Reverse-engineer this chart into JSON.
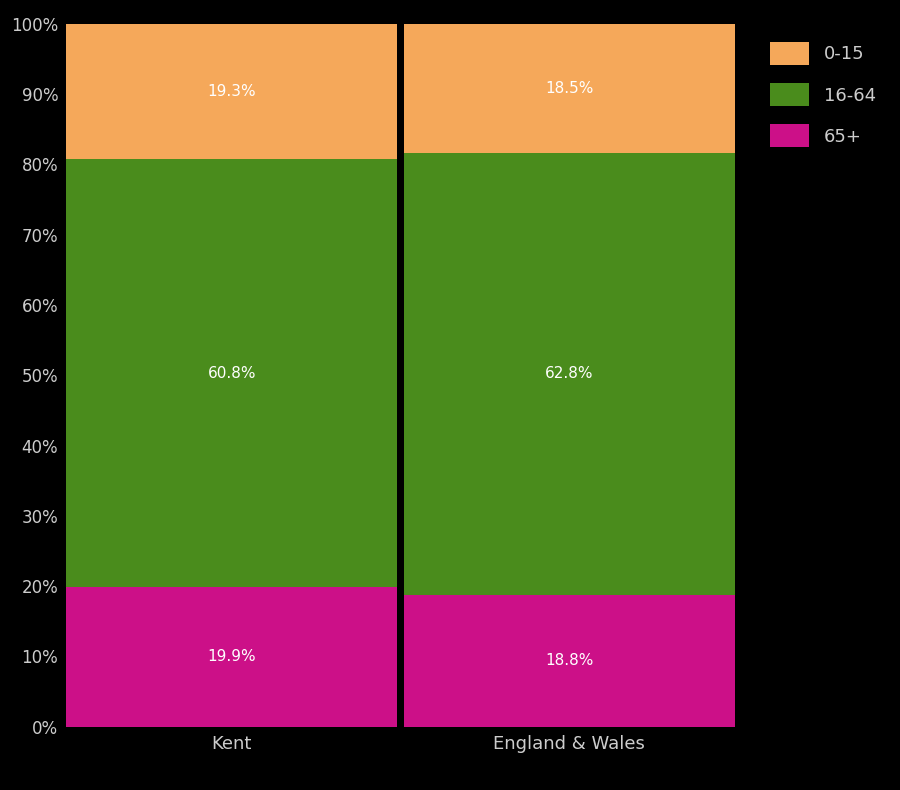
{
  "categories": [
    "Kent",
    "England & Wales"
  ],
  "segments": [
    {
      "label": "65+",
      "values": [
        19.9,
        18.8
      ],
      "color": "#CC1088"
    },
    {
      "label": "16-64",
      "values": [
        60.8,
        62.8
      ],
      "color": "#4A8C1C"
    },
    {
      "label": "0-15",
      "values": [
        19.3,
        18.5
      ],
      "color": "#F5A85A"
    }
  ],
  "background_color": "#000000",
  "text_color": "#CCCCCC",
  "ylim": [
    0,
    100
  ],
  "yticks": [
    0,
    10,
    20,
    30,
    40,
    50,
    60,
    70,
    80,
    90,
    100
  ],
  "ytick_labels": [
    "0%",
    "10%",
    "20%",
    "30%",
    "40%",
    "50%",
    "60%",
    "70%",
    "80%",
    "90%",
    "100%"
  ],
  "tick_fontsize": 12,
  "xlabel_fontsize": 13,
  "legend_fontsize": 13,
  "annotation_fontsize": 11,
  "annotation_color": "#FFFFFF",
  "divider_color": "#000000",
  "divider_linewidth": 2.0
}
